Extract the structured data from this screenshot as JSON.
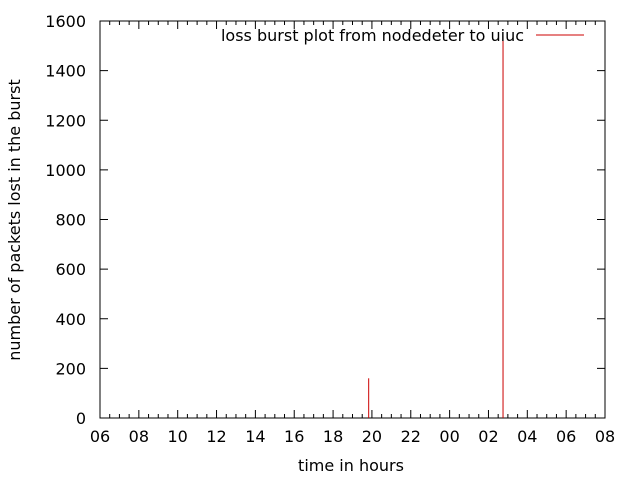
{
  "chart_data": {
    "type": "impulse",
    "title": "",
    "xlabel": "time in hours",
    "ylabel": "number of packets lost in the burst",
    "ylim": [
      0,
      1600
    ],
    "yticks": [
      0,
      200,
      400,
      600,
      800,
      1000,
      1200,
      1400,
      1600
    ],
    "xlim_hours_elapsed_note": "",
    "xticks": [
      "06",
      "08",
      "10",
      "12",
      "14",
      "16",
      "18",
      "20",
      "22",
      "00",
      "02",
      "04",
      "06",
      "08"
    ],
    "grid": false,
    "legend_position": "top-right",
    "series": [
      {
        "name": "loss burst plot from nodedeter to uiuc",
        "color": "#cc0000",
        "points": [
          {
            "time": "19:50",
            "value": 160
          },
          {
            "time": "02:45",
            "value": 1540
          }
        ]
      }
    ]
  }
}
